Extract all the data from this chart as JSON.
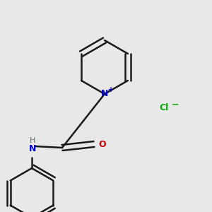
{
  "bg_color": "#e8e8e8",
  "bond_color": "#1a1a1a",
  "n_color": "#0000cc",
  "o_color": "#cc0000",
  "cl_color": "#00aa00",
  "lw": 1.8,
  "figsize": [
    3.0,
    3.0
  ],
  "dpi": 100,
  "xlim": [
    0,
    300
  ],
  "ylim": [
    0,
    300
  ]
}
